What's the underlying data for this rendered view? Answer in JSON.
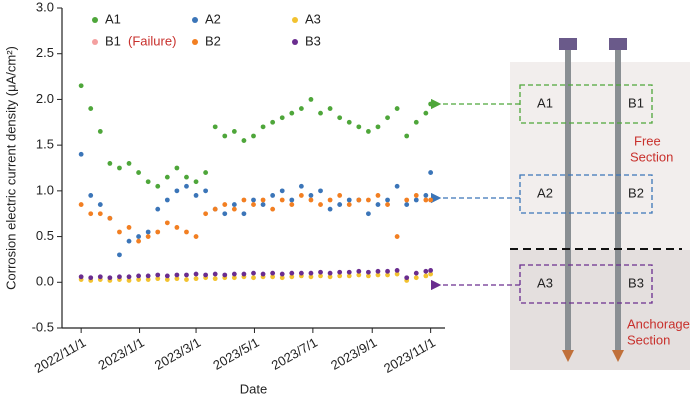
{
  "chart_data": {
    "type": "scatter",
    "x_label": "Date",
    "y_label": "Corrosion electric current density (μA/cm²)",
    "failure_note": "(Failure)",
    "x": [
      "2022/11/1",
      "2022/11/11",
      "2022/11/21",
      "2022/12/1",
      "2022/12/11",
      "2022/12/21",
      "2022/12/31",
      "2023/1/10",
      "2023/1/20",
      "2023/1/30",
      "2023/2/9",
      "2023/2/19",
      "2023/3/1",
      "2023/3/11",
      "2023/3/21",
      "2023/3/31",
      "2023/4/10",
      "2023/4/20",
      "2023/4/30",
      "2023/5/10",
      "2023/5/20",
      "2023/5/30",
      "2023/6/9",
      "2023/6/19",
      "2023/6/29",
      "2023/7/9",
      "2023/7/19",
      "2023/7/29",
      "2023/8/8",
      "2023/8/18",
      "2023/8/28",
      "2023/9/7",
      "2023/9/17",
      "2023/9/27",
      "2023/10/7",
      "2023/10/17",
      "2023/10/27",
      "2023/11/1"
    ],
    "series": [
      {
        "name": "A1",
        "color": "#4ea63a",
        "values": [
          2.15,
          1.9,
          1.65,
          1.3,
          1.25,
          1.3,
          1.2,
          1.1,
          1.05,
          1.15,
          1.25,
          1.15,
          1.1,
          1.2,
          1.7,
          1.6,
          1.65,
          1.55,
          1.6,
          1.7,
          1.75,
          1.8,
          1.85,
          1.9,
          2.0,
          1.85,
          1.9,
          1.8,
          1.75,
          1.7,
          1.65,
          1.7,
          1.8,
          1.9,
          1.6,
          1.75,
          1.85,
          1.95
        ]
      },
      {
        "name": "A2",
        "color": "#3b75b8",
        "values": [
          1.4,
          0.95,
          0.85,
          0.7,
          0.3,
          0.45,
          0.5,
          0.55,
          0.8,
          0.9,
          1.0,
          1.05,
          0.95,
          1.0,
          0.8,
          0.75,
          0.85,
          0.75,
          0.9,
          0.85,
          0.95,
          1.0,
          0.9,
          1.05,
          0.95,
          1.0,
          0.8,
          0.85,
          0.9,
          0.9,
          0.75,
          0.85,
          0.9,
          1.05,
          0.85,
          0.9,
          0.95,
          1.2
        ]
      },
      {
        "name": "A3",
        "color": "#f2c230",
        "values": [
          0.03,
          0.02,
          0.03,
          0.02,
          0.03,
          0.02,
          0.03,
          0.03,
          0.04,
          0.03,
          0.04,
          0.03,
          0.04,
          0.05,
          0.04,
          0.05,
          0.05,
          0.06,
          0.05,
          0.06,
          0.06,
          0.05,
          0.06,
          0.07,
          0.06,
          0.07,
          0.06,
          0.07,
          0.07,
          0.08,
          0.07,
          0.08,
          0.08,
          0.09,
          0.02,
          0.05,
          0.07,
          0.09
        ]
      },
      {
        "name": "B1",
        "color": "#f4a0a0",
        "values": [
          null,
          null,
          null,
          null,
          null,
          null,
          null,
          null,
          null,
          null,
          null,
          null,
          null,
          null,
          null,
          null,
          null,
          null,
          null,
          null,
          null,
          null,
          null,
          null,
          null,
          null,
          null,
          null,
          null,
          null,
          null,
          null,
          null,
          null,
          null,
          null,
          null,
          null
        ]
      },
      {
        "name": "B2",
        "color": "#f27f22",
        "values": [
          0.85,
          0.75,
          0.75,
          0.7,
          0.55,
          0.6,
          0.45,
          0.5,
          0.55,
          0.65,
          0.6,
          0.55,
          0.5,
          0.75,
          0.8,
          0.85,
          0.8,
          0.9,
          0.85,
          0.9,
          0.8,
          0.9,
          0.85,
          0.95,
          0.9,
          0.85,
          0.9,
          0.95,
          0.85,
          0.9,
          0.9,
          0.95,
          0.85,
          0.5,
          0.9,
          0.95,
          0.9,
          0.9
        ]
      },
      {
        "name": "B3",
        "color": "#6a2d8f",
        "values": [
          0.06,
          0.05,
          0.06,
          0.05,
          0.06,
          0.06,
          0.07,
          0.07,
          0.08,
          0.07,
          0.08,
          0.08,
          0.09,
          0.08,
          0.09,
          0.08,
          0.09,
          0.09,
          0.1,
          0.09,
          0.1,
          0.09,
          0.1,
          0.1,
          0.1,
          0.11,
          0.1,
          0.11,
          0.11,
          0.12,
          0.11,
          0.12,
          0.12,
          0.13,
          0.05,
          0.1,
          0.12,
          0.13
        ]
      }
    ],
    "xlim": [
      "2022/10/12",
      "2023/11/16"
    ],
    "xticks": [
      "2022/11/1",
      "2023/1/1",
      "2023/3/1",
      "2023/5/1",
      "2023/7/1",
      "2023/9/1",
      "2023/11/1"
    ],
    "ylim": [
      -0.5,
      3.0
    ],
    "yticks": [
      -0.5,
      {
        "value": 0,
        "label": "0.0"
      },
      0.5,
      {
        "value": 1,
        "label": "1.0"
      },
      1.5,
      {
        "value": 2,
        "label": "2.0"
      },
      2.5,
      {
        "value": 3,
        "label": "3.0"
      }
    ]
  },
  "diagram": {
    "boxes": [
      {
        "left": "A1",
        "right": "B1"
      },
      {
        "left": "A2",
        "right": "B2"
      },
      {
        "left": "A3",
        "right": "B3"
      }
    ],
    "free_section": [
      "Free",
      "Section"
    ],
    "anchorage_section": [
      "Anchorage",
      "Section"
    ]
  }
}
